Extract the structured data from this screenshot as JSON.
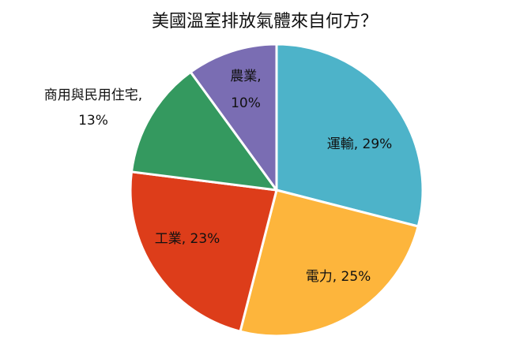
{
  "chart_data": {
    "type": "pie",
    "title": "美國溫室排放氣體來自何方？",
    "slices": [
      {
        "label": "運輸",
        "value": 29,
        "value_text": "29%",
        "display": "運輸, 29%",
        "color": "#4db3c9"
      },
      {
        "label": "電力",
        "value": 25,
        "value_text": "25%",
        "display": "電力, 25%",
        "color": "#fdb53c"
      },
      {
        "label": "工業",
        "value": 23,
        "value_text": "23%",
        "display": "工業, 23%",
        "color": "#dd3d1a"
      },
      {
        "label": "商用與民用住宅",
        "value": 13,
        "value_text": "13%",
        "display": "商用與民用住宅,",
        "color": "#34995f"
      },
      {
        "label": "農業",
        "value": 10,
        "value_text": "10%",
        "display": "農業,",
        "color": "#7a6db3"
      }
    ],
    "start_angle": "12 o'clock",
    "direction": "clockwise",
    "slice_border_color": "#ffffff"
  }
}
